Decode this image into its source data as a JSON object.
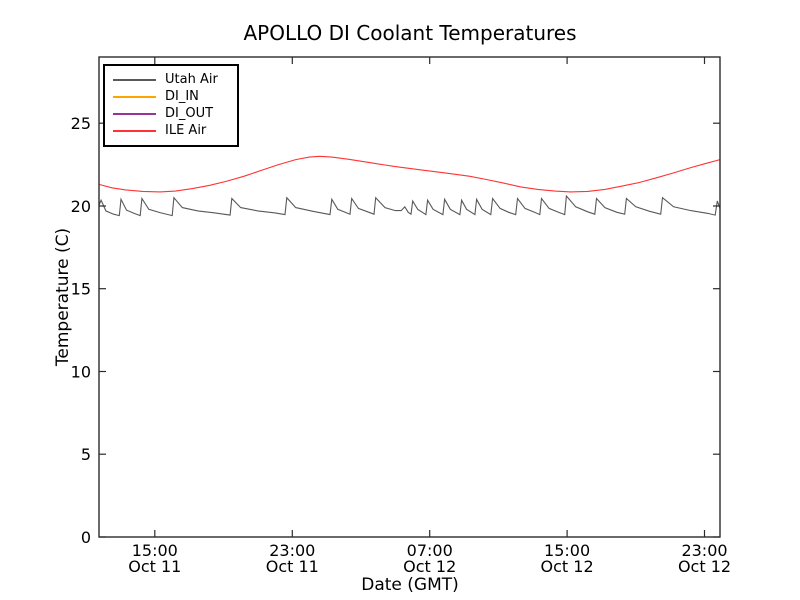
{
  "title": "APOLLO DI Coolant Temperatures",
  "chart_data": {
    "type": "line",
    "title": "APOLLO DI Coolant Temperatures",
    "xlabel": "Date (GMT)",
    "ylabel": "Temperature (C)",
    "x_unit": "hours since Oct 11 00:00 GMT",
    "xlim": [
      11.75,
      47.9
    ],
    "ylim": [
      0,
      29
    ],
    "grid": false,
    "legend_position": "upper left",
    "frame_color": "#2b2b2b",
    "y_ticks": [
      0,
      5,
      10,
      15,
      20,
      25
    ],
    "x_ticks": [
      {
        "t": 15,
        "time": "15:00",
        "date": "Oct 11"
      },
      {
        "t": 23,
        "time": "23:00",
        "date": "Oct 11"
      },
      {
        "t": 31,
        "time": "07:00",
        "date": "Oct 12"
      },
      {
        "t": 39,
        "time": "15:00",
        "date": "Oct 12"
      },
      {
        "t": 47,
        "time": "23:00",
        "date": "Oct 12"
      }
    ],
    "series": [
      {
        "name": "Utah Air",
        "color": "#595959",
        "points": [
          [
            11.75,
            20.05
          ],
          [
            11.87,
            20.35
          ],
          [
            12.15,
            19.7
          ],
          [
            12.6,
            19.5
          ],
          [
            12.93,
            19.42
          ],
          [
            13.03,
            20.4
          ],
          [
            13.35,
            19.75
          ],
          [
            13.8,
            19.55
          ],
          [
            14.15,
            19.42
          ],
          [
            14.25,
            20.45
          ],
          [
            14.65,
            19.8
          ],
          [
            15.3,
            19.6
          ],
          [
            16.01,
            19.42
          ],
          [
            16.11,
            20.5
          ],
          [
            16.6,
            19.9
          ],
          [
            17.5,
            19.7
          ],
          [
            18.5,
            19.58
          ],
          [
            19.38,
            19.45
          ],
          [
            19.48,
            20.45
          ],
          [
            20.0,
            19.9
          ],
          [
            21.0,
            19.7
          ],
          [
            22.0,
            19.58
          ],
          [
            22.58,
            19.48
          ],
          [
            22.68,
            20.5
          ],
          [
            23.2,
            19.9
          ],
          [
            24.2,
            19.68
          ],
          [
            25.2,
            19.48
          ],
          [
            25.3,
            20.4
          ],
          [
            25.65,
            19.8
          ],
          [
            26.36,
            19.5
          ],
          [
            26.46,
            20.45
          ],
          [
            26.85,
            19.85
          ],
          [
            27.76,
            19.5
          ],
          [
            27.86,
            20.5
          ],
          [
            28.4,
            19.9
          ],
          [
            29.0,
            19.72
          ],
          [
            29.35,
            19.72
          ],
          [
            29.55,
            19.95
          ],
          [
            29.75,
            19.62
          ],
          [
            29.91,
            19.5
          ],
          [
            30.01,
            20.3
          ],
          [
            30.3,
            19.8
          ],
          [
            30.78,
            19.48
          ],
          [
            30.88,
            20.35
          ],
          [
            31.2,
            19.8
          ],
          [
            31.77,
            19.48
          ],
          [
            31.87,
            20.4
          ],
          [
            32.2,
            19.8
          ],
          [
            32.76,
            19.48
          ],
          [
            32.86,
            20.35
          ],
          [
            33.15,
            19.8
          ],
          [
            33.63,
            19.48
          ],
          [
            33.73,
            20.4
          ],
          [
            34.05,
            19.8
          ],
          [
            34.56,
            19.48
          ],
          [
            34.66,
            20.45
          ],
          [
            35.1,
            19.85
          ],
          [
            35.6,
            19.62
          ],
          [
            36.01,
            19.48
          ],
          [
            36.11,
            20.45
          ],
          [
            36.55,
            19.85
          ],
          [
            37.1,
            19.62
          ],
          [
            37.41,
            19.48
          ],
          [
            37.51,
            20.45
          ],
          [
            37.95,
            19.85
          ],
          [
            38.5,
            19.62
          ],
          [
            38.86,
            19.48
          ],
          [
            38.96,
            20.6
          ],
          [
            39.5,
            19.95
          ],
          [
            40.2,
            19.65
          ],
          [
            40.61,
            19.5
          ],
          [
            40.71,
            20.45
          ],
          [
            41.2,
            19.9
          ],
          [
            41.9,
            19.62
          ],
          [
            42.35,
            19.5
          ],
          [
            42.45,
            20.45
          ],
          [
            43.0,
            19.95
          ],
          [
            43.8,
            19.68
          ],
          [
            44.45,
            19.5
          ],
          [
            44.55,
            20.5
          ],
          [
            45.2,
            19.95
          ],
          [
            46.2,
            19.72
          ],
          [
            47.2,
            19.55
          ],
          [
            47.62,
            19.45
          ],
          [
            47.74,
            20.3
          ],
          [
            47.9,
            19.85
          ]
        ]
      },
      {
        "name": "DI_IN",
        "color": "#ffa500",
        "points": []
      },
      {
        "name": "DI_OUT",
        "color": "#993399",
        "points": []
      },
      {
        "name": "ILE Air",
        "color": "#ff3333",
        "points": [
          [
            11.75,
            21.3
          ],
          [
            12.5,
            21.1
          ],
          [
            13.3,
            20.97
          ],
          [
            14.3,
            20.88
          ],
          [
            15.3,
            20.85
          ],
          [
            16.2,
            20.9
          ],
          [
            17.2,
            21.05
          ],
          [
            18.2,
            21.25
          ],
          [
            19.2,
            21.5
          ],
          [
            20.2,
            21.8
          ],
          [
            21.2,
            22.15
          ],
          [
            22.2,
            22.5
          ],
          [
            23.2,
            22.8
          ],
          [
            24.0,
            22.95
          ],
          [
            24.6,
            23.0
          ],
          [
            25.3,
            22.95
          ],
          [
            26.3,
            22.82
          ],
          [
            27.5,
            22.62
          ],
          [
            29.0,
            22.38
          ],
          [
            30.5,
            22.18
          ],
          [
            32.0,
            21.98
          ],
          [
            33.3,
            21.8
          ],
          [
            34.3,
            21.6
          ],
          [
            35.3,
            21.38
          ],
          [
            36.3,
            21.15
          ],
          [
            37.3,
            21.0
          ],
          [
            38.3,
            20.9
          ],
          [
            39.2,
            20.85
          ],
          [
            40.2,
            20.88
          ],
          [
            41.2,
            21.0
          ],
          [
            42.2,
            21.2
          ],
          [
            43.2,
            21.42
          ],
          [
            44.2,
            21.7
          ],
          [
            45.2,
            22.0
          ],
          [
            46.2,
            22.32
          ],
          [
            47.0,
            22.55
          ],
          [
            47.9,
            22.8
          ]
        ]
      }
    ]
  }
}
